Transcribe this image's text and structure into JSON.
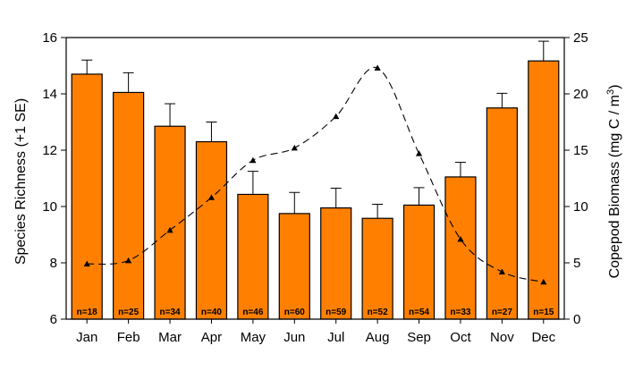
{
  "chart_data": {
    "type": "bar",
    "categories": [
      "Jan",
      "Feb",
      "Mar",
      "Apr",
      "May",
      "Jun",
      "Jul",
      "Aug",
      "Sep",
      "Oct",
      "Nov",
      "Dec"
    ],
    "y_left": {
      "label": "Species Richness (+1 SE)",
      "range": [
        6,
        16
      ],
      "ticks": [
        6,
        8,
        10,
        12,
        14,
        16
      ]
    },
    "y_right": {
      "label": "Copepod Biomass (mg C / m",
      "label_superscript": "3",
      "label_suffix": ")",
      "range": [
        0,
        25
      ],
      "ticks": [
        0,
        5,
        10,
        15,
        20,
        25
      ]
    },
    "series": [
      {
        "type": "bar",
        "axis": "left",
        "color": "#ff8000",
        "values": [
          14.7,
          14.05,
          12.85,
          12.3,
          10.43,
          9.75,
          9.95,
          9.58,
          10.05,
          11.05,
          13.5,
          15.17
        ],
        "errors": [
          0.5,
          0.7,
          0.8,
          0.7,
          0.82,
          0.75,
          0.7,
          0.5,
          0.62,
          0.52,
          0.52,
          0.7
        ],
        "sample_sizes": [
          "n=18",
          "n=25",
          "n=34",
          "n=40",
          "n=46",
          "n=60",
          "n=59",
          "n=52",
          "n=54",
          "n=33",
          "n=27",
          "n=15"
        ]
      },
      {
        "type": "line",
        "axis": "right",
        "style": "dashed",
        "marker": "triangle",
        "values": [
          4.9,
          5.2,
          7.9,
          10.8,
          14.1,
          15.2,
          18.0,
          22.3,
          14.7,
          7.1,
          4.2,
          3.3
        ]
      }
    ],
    "grid": false
  }
}
